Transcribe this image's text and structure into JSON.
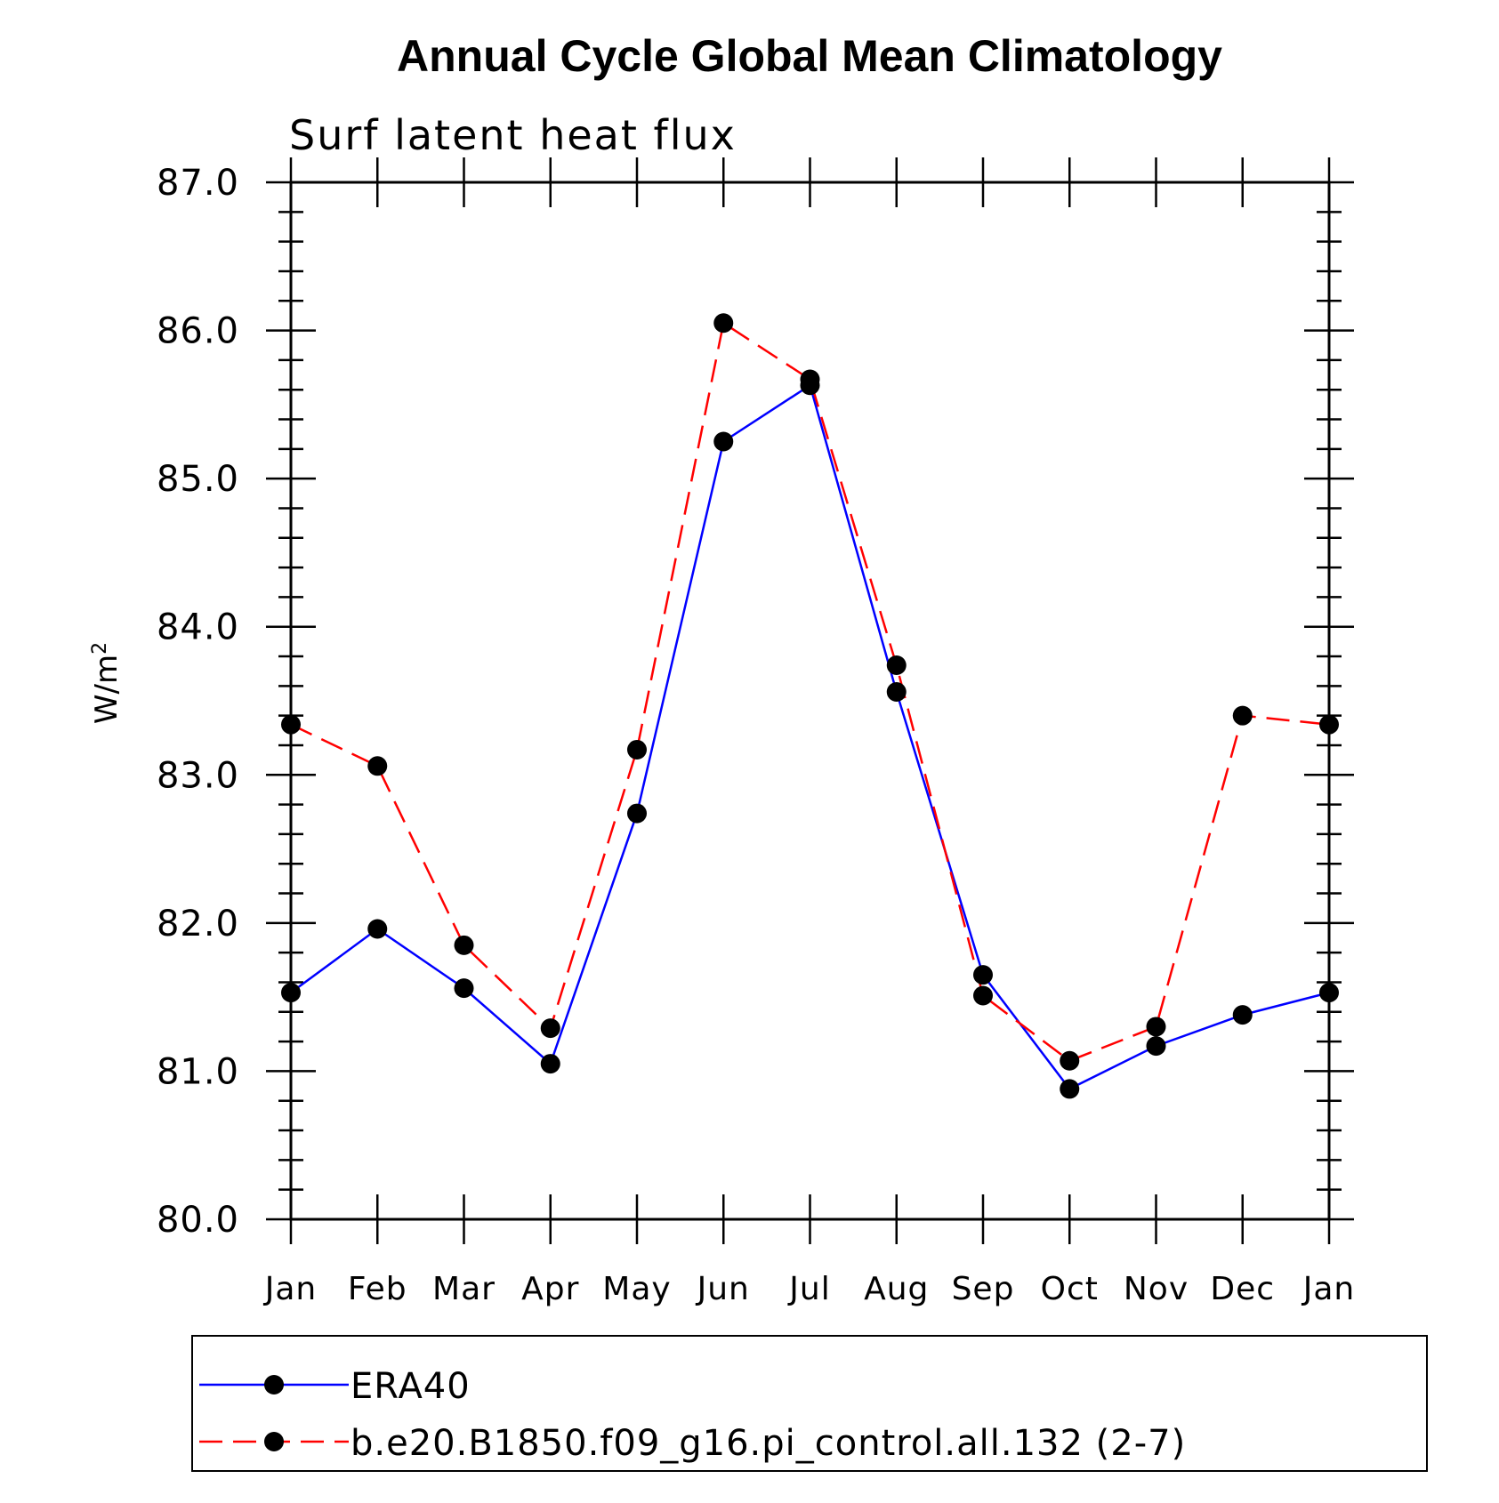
{
  "chart_data": {
    "type": "line",
    "title": "Annual Cycle Global Mean Climatology",
    "subtitle": "Surf latent heat flux",
    "ylabel": "W/m",
    "ylabel_superscript": "2",
    "ylim": [
      80.0,
      87.0
    ],
    "yticks": [
      "80.0",
      "81.0",
      "82.0",
      "83.0",
      "84.0",
      "85.0",
      "86.0",
      "87.0"
    ],
    "categories": [
      "Jan",
      "Feb",
      "Mar",
      "Apr",
      "May",
      "Jun",
      "Jul",
      "Aug",
      "Sep",
      "Oct",
      "Nov",
      "Dec",
      "Jan"
    ],
    "series": [
      {
        "name": "ERA40",
        "color": "#0000ff",
        "line_style": "solid",
        "marker": "filled-circle",
        "values": [
          81.53,
          81.96,
          81.56,
          81.05,
          82.74,
          85.25,
          85.63,
          83.56,
          81.65,
          80.88,
          81.17,
          81.38,
          81.53
        ]
      },
      {
        "name": "b.e20.B1850.f09_g16.pi_control.all.132 (2-7)",
        "color": "#ff0000",
        "line_style": "dashed",
        "marker": "filled-circle",
        "values": [
          83.34,
          83.06,
          81.85,
          81.29,
          83.17,
          86.05,
          85.67,
          83.74,
          81.51,
          81.07,
          81.3,
          83.4,
          83.34
        ]
      }
    ],
    "legend_position": "bottom"
  }
}
